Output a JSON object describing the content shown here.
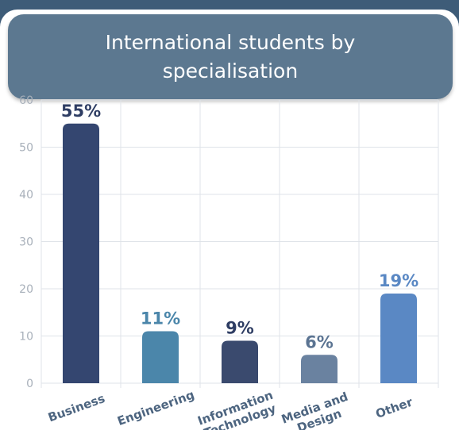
{
  "chart_data": {
    "type": "bar",
    "title": "International students by specialisation",
    "categories": [
      "Business",
      "Engineering",
      "Information Technology",
      "Media and Design",
      "Other"
    ],
    "category_lines": [
      [
        "Business"
      ],
      [
        "Engineering"
      ],
      [
        "Information",
        "Technology"
      ],
      [
        "Media and",
        "Design"
      ],
      [
        "Other"
      ]
    ],
    "values": [
      55,
      11,
      9,
      6,
      19
    ],
    "data_labels": [
      "55%",
      "11%",
      "9%",
      "6%",
      "19%"
    ],
    "yticks": [
      0,
      10,
      20,
      30,
      40,
      50,
      60
    ],
    "ylim": [
      0,
      60
    ],
    "grid": true,
    "bar_colors": [
      "#344670",
      "#4b86aa",
      "#3a4a6e",
      "#6a82a0",
      "#5a88c4"
    ],
    "label_colors": [
      "#2e3d63",
      "#4b86aa",
      "#2e3d63",
      "#5b7492",
      "#5a88c4"
    ]
  }
}
